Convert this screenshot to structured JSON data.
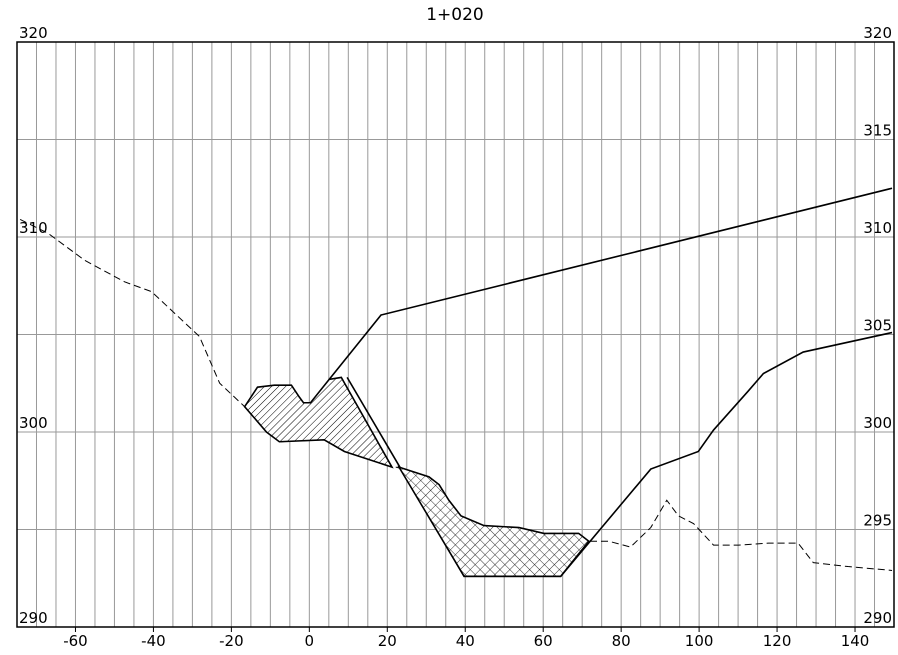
{
  "chart_data": {
    "type": "line",
    "title": "1+020",
    "xlim": [
      -75,
      150
    ],
    "ylim": [
      290,
      320
    ],
    "y2lim": [
      290,
      320
    ],
    "xticks": [
      -60,
      -40,
      -20,
      0,
      20,
      40,
      60,
      80,
      100,
      120,
      140
    ],
    "yticks": [
      290,
      300,
      310,
      320
    ],
    "y2ticks": [
      290,
      295,
      300,
      305,
      310,
      315,
      320
    ],
    "grid": true,
    "xgrid_step": 5,
    "series": [
      {
        "kind": "line",
        "style": "dashed",
        "color": "#000000",
        "x": [
          -74.2,
          -67.1,
          -57.6,
          -47.4,
          -40.5,
          -28.2,
          -23.0,
          -16.6,
          -11.0,
          -7.7,
          3.8,
          9.0,
          20.5,
          30.7,
          33.3,
          35.8,
          38.9,
          44.8,
          53.8,
          60.2,
          69.1,
          71.7,
          76.8,
          82.4,
          87.6,
          91.7,
          94.7,
          98.6,
          103.7,
          110.1,
          117.8,
          125.4,
          129.3,
          138.2,
          149.5
        ],
        "values": [
          310.9,
          310.2,
          308.8,
          307.7,
          307.2,
          304.9,
          302.5,
          301.3,
          300.0,
          299.5,
          299.6,
          299.0,
          298.3,
          297.7,
          297.3,
          296.5,
          295.7,
          295.2,
          295.1,
          294.8,
          294.8,
          294.4,
          294.4,
          294.1,
          295.1,
          296.5,
          295.7,
          295.3,
          294.2,
          294.2,
          294.3,
          294.3,
          293.3,
          293.1,
          292.9
        ]
      },
      {
        "kind": "fill",
        "hatch": "diagonal",
        "color": "#000000",
        "x": [
          -16.6,
          -13.3,
          -9.0,
          -4.6,
          -2.6,
          -1.5,
          0.3,
          5.1,
          8.2,
          21.2,
          9.0,
          3.8,
          -7.7,
          -11.0
        ],
        "values": [
          301.3,
          302.3,
          302.4,
          302.4,
          301.8,
          301.5,
          301.5,
          302.7,
          302.8,
          298.2,
          299.0,
          299.6,
          299.5,
          300.0
        ]
      },
      {
        "kind": "fill",
        "hatch": "cross",
        "color": "#000000",
        "x": [
          23.0,
          30.7,
          33.3,
          35.8,
          38.9,
          44.8,
          53.8,
          60.2,
          69.1,
          71.7,
          64.5,
          39.7
        ],
        "values": [
          298.2,
          297.7,
          297.3,
          296.5,
          295.7,
          295.2,
          295.1,
          294.8,
          294.8,
          294.4,
          292.6,
          292.6
        ]
      },
      {
        "kind": "line",
        "style": "solid",
        "color": "#000000",
        "x": [
          5.1,
          18.4,
          149.5
        ],
        "values": [
          302.7,
          306.0,
          312.5
        ]
      },
      {
        "kind": "line",
        "style": "solid",
        "color": "#000000",
        "x": [
          9.7,
          39.7,
          64.5,
          87.6,
          99.8,
          103.7,
          112.6,
          116.5,
          126.7,
          149.5
        ],
        "values": [
          302.8,
          292.6,
          292.6,
          298.1,
          299.0,
          300.1,
          302.1,
          303.0,
          304.1,
          305.1
        ]
      }
    ]
  }
}
